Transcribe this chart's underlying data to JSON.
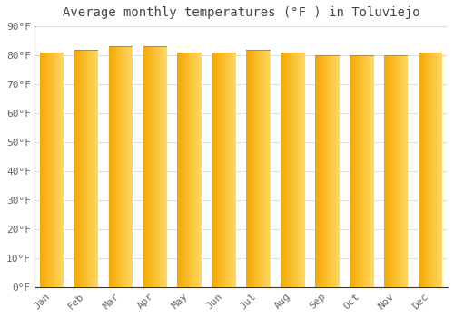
{
  "months": [
    "Jan",
    "Feb",
    "Mar",
    "Apr",
    "May",
    "Jun",
    "Jul",
    "Aug",
    "Sep",
    "Oct",
    "Nov",
    "Dec"
  ],
  "values": [
    81,
    82,
    83,
    83,
    81,
    81,
    82,
    81,
    80,
    80,
    80,
    81
  ],
  "bar_color_left": "#F5A800",
  "bar_color_right": "#FFD966",
  "background_color": "#FFFFFF",
  "plot_bg_color": "#FFFFFF",
  "title": "Average monthly temperatures (°F ) in Toluviejo",
  "ylim": [
    0,
    90
  ],
  "yticks": [
    0,
    10,
    20,
    30,
    40,
    50,
    60,
    70,
    80,
    90
  ],
  "ytick_labels": [
    "0°F",
    "10°F",
    "20°F",
    "30°F",
    "40°F",
    "50°F",
    "60°F",
    "70°F",
    "80°F",
    "90°F"
  ],
  "title_fontsize": 10,
  "tick_fontsize": 8,
  "grid_color": "#DDDDDD",
  "spine_color": "#333333",
  "tick_label_color": "#666666",
  "bar_width": 0.7
}
